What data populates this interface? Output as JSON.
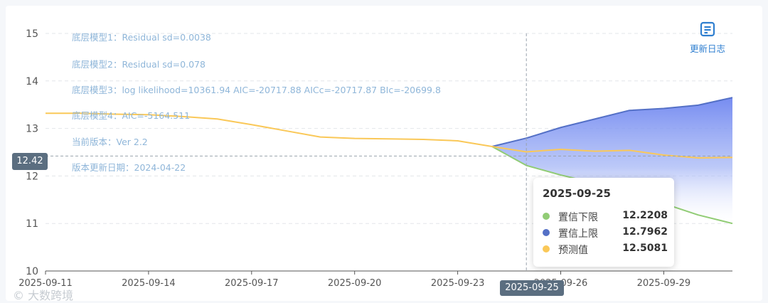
{
  "notes": [
    "底层模型1：Residual sd=0.0038",
    "底层模型2：Residual sd=0.078",
    "底层模型3：log likelihood=10361.94 AIC=-20717.88 AICc=-20717.87 BIc=-20699.8",
    "底层模型4：AIC=-5164.511",
    "当前版本：Ver 2.2",
    "版本更新日期：2024-04-22"
  ],
  "toolbar": {
    "update_log_label": "更新日志",
    "update_log_icon": "document-list-icon"
  },
  "pointer": {
    "y_value": "12.42",
    "x_value": "2025-09-25"
  },
  "tooltip": {
    "date": "2025-09-25",
    "rows": [
      {
        "name": "置信下限",
        "value": "12.2208",
        "color": "#91cc75"
      },
      {
        "name": "置信上限",
        "value": "12.7962",
        "color": "#5470c6"
      },
      {
        "name": "预测值",
        "value": "12.5081",
        "color": "#fac858"
      }
    ]
  },
  "watermark": "© 大数跨境",
  "chart_data": {
    "type": "line",
    "x_ticks": [
      "2025-09-11",
      "2025-09-14",
      "2025-09-17",
      "2025-09-20",
      "2025-09-23",
      "2025-09-26",
      "2025-09-29"
    ],
    "x_range": [
      "2025-09-11",
      "2025-10-01"
    ],
    "ylim": [
      10,
      15
    ],
    "y_ticks": [
      10,
      11,
      12,
      13,
      14,
      15
    ],
    "grid": true,
    "series": [
      {
        "name": "预测值",
        "color": "#fac858",
        "points": [
          [
            "2025-09-11",
            13.32
          ],
          [
            "2025-09-12",
            13.32
          ],
          [
            "2025-09-13",
            13.3
          ],
          [
            "2025-09-14",
            13.29
          ],
          [
            "2025-09-15",
            13.25
          ],
          [
            "2025-09-16",
            13.2
          ],
          [
            "2025-09-17",
            13.08
          ],
          [
            "2025-09-18",
            12.95
          ],
          [
            "2025-09-19",
            12.82
          ],
          [
            "2025-09-20",
            12.79
          ],
          [
            "2025-09-21",
            12.78
          ],
          [
            "2025-09-22",
            12.77
          ],
          [
            "2025-09-23",
            12.74
          ],
          [
            "2025-09-24",
            12.62
          ],
          [
            "2025-09-25",
            12.5081
          ],
          [
            "2025-09-26",
            12.56
          ],
          [
            "2025-09-27",
            12.52
          ],
          [
            "2025-09-28",
            12.54
          ],
          [
            "2025-09-29",
            12.44
          ],
          [
            "2025-09-30",
            12.38
          ],
          [
            "2025-10-01",
            12.39
          ]
        ]
      },
      {
        "name": "置信上限",
        "color": "#5470c6",
        "points": [
          [
            "2025-09-24",
            12.62
          ],
          [
            "2025-09-25",
            12.7962
          ],
          [
            "2025-09-26",
            13.02
          ],
          [
            "2025-09-27",
            13.2
          ],
          [
            "2025-09-28",
            13.38
          ],
          [
            "2025-09-29",
            13.42
          ],
          [
            "2025-09-30",
            13.49
          ],
          [
            "2025-10-01",
            13.65
          ]
        ]
      },
      {
        "name": "置信下限",
        "color": "#91cc75",
        "points": [
          [
            "2025-09-24",
            12.62
          ],
          [
            "2025-09-25",
            12.2208
          ],
          [
            "2025-09-26",
            12.02
          ],
          [
            "2025-09-27",
            11.85
          ],
          [
            "2025-09-28",
            11.68
          ],
          [
            "2025-09-29",
            11.42
          ],
          [
            "2025-09-30",
            11.18
          ],
          [
            "2025-10-01",
            11.0
          ]
        ]
      }
    ],
    "crosshair": {
      "x": "2025-09-25",
      "y": 12.42
    }
  }
}
